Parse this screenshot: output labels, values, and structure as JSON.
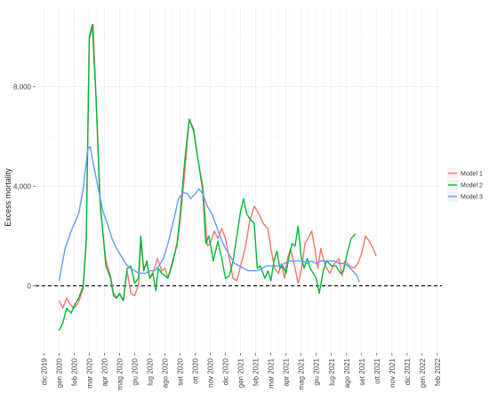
{
  "chart_data": {
    "type": "line",
    "title": "",
    "xlabel": "",
    "ylabel": "Excess mortality",
    "x_tick_labels": [
      "dic 2019",
      "gen 2020",
      "feb 2020",
      "mar 2020",
      "apr 2020",
      "mag 2020",
      "giu 2020",
      "lug 2020",
      "ago 2020",
      "set 2020",
      "ott 2020",
      "nov 2020",
      "dic 2020",
      "gen 2021",
      "feb 2021",
      "mar 2021",
      "apr 2021",
      "mag 2021",
      "giu 2021",
      "lug 2021",
      "ago 2021",
      "set 2021",
      "ott 2021",
      "nov 2021",
      "dic 2021",
      "gen 2022",
      "feb 2022"
    ],
    "y_ticks": [
      {
        "value": 0,
        "label": "0"
      },
      {
        "value": 4000,
        "label": "4,000"
      },
      {
        "value": 8000,
        "label": "8,000"
      }
    ],
    "xlim_month_index": [
      -0.55,
      26.3
    ],
    "ylim": [
      -2700,
      11200
    ],
    "reference_line": {
      "y": 0,
      "style": "dashed",
      "color": "#000000"
    },
    "grid": true,
    "legend_position": "right",
    "series": [
      {
        "name": "Model 1",
        "color": "#F8766D",
        "points": [
          [
            1.0,
            -600
          ],
          [
            1.25,
            -900
          ],
          [
            1.5,
            -500
          ],
          [
            1.8,
            -800
          ],
          [
            2.0,
            -900
          ],
          [
            2.3,
            -650
          ],
          [
            2.6,
            -100
          ],
          [
            2.8,
            1800
          ],
          [
            3.0,
            9900
          ],
          [
            3.25,
            10500
          ],
          [
            3.5,
            6800
          ],
          [
            3.75,
            3000
          ],
          [
            4.1,
            1000
          ],
          [
            4.4,
            400
          ],
          [
            4.6,
            -300
          ],
          [
            4.8,
            -450
          ],
          [
            5.0,
            -350
          ],
          [
            5.25,
            -600
          ],
          [
            5.5,
            600
          ],
          [
            5.75,
            -300
          ],
          [
            6.0,
            -400
          ],
          [
            6.25,
            50
          ],
          [
            6.4,
            1700
          ],
          [
            6.6,
            700
          ],
          [
            6.8,
            900
          ],
          [
            7.0,
            300
          ],
          [
            7.25,
            600
          ],
          [
            7.5,
            1100
          ],
          [
            7.8,
            600
          ],
          [
            8.0,
            700
          ],
          [
            8.2,
            300
          ],
          [
            8.5,
            1000
          ],
          [
            8.8,
            1600
          ],
          [
            9.0,
            2600
          ],
          [
            9.3,
            4500
          ],
          [
            9.6,
            6700
          ],
          [
            9.9,
            6300
          ],
          [
            10.2,
            5000
          ],
          [
            10.5,
            4000
          ],
          [
            10.8,
            1600
          ],
          [
            11.0,
            1700
          ],
          [
            11.25,
            2200
          ],
          [
            11.5,
            1900
          ],
          [
            11.75,
            2300
          ],
          [
            12.0,
            1900
          ],
          [
            12.25,
            1100
          ],
          [
            12.5,
            300
          ],
          [
            12.75,
            200
          ],
          [
            13.0,
            800
          ],
          [
            13.3,
            1500
          ],
          [
            13.6,
            2600
          ],
          [
            13.9,
            3200
          ],
          [
            14.2,
            2900
          ],
          [
            14.5,
            2500
          ],
          [
            14.8,
            2300
          ],
          [
            15.0,
            1500
          ],
          [
            15.25,
            700
          ],
          [
            15.5,
            500
          ],
          [
            15.7,
            900
          ],
          [
            15.9,
            300
          ],
          [
            16.1,
            1100
          ],
          [
            16.3,
            1500
          ],
          [
            16.6,
            700
          ],
          [
            16.8,
            100
          ],
          [
            17.0,
            600
          ],
          [
            17.25,
            1700
          ],
          [
            17.45,
            1900
          ],
          [
            17.7,
            2200
          ],
          [
            17.9,
            1500
          ],
          [
            18.1,
            700
          ],
          [
            18.3,
            1500
          ],
          [
            18.6,
            800
          ],
          [
            18.9,
            500
          ],
          [
            19.2,
            900
          ],
          [
            19.5,
            1100
          ],
          [
            19.7,
            400
          ],
          [
            19.9,
            1000
          ],
          [
            20.2,
            800
          ],
          [
            20.5,
            700
          ],
          [
            20.75,
            900
          ],
          [
            21.0,
            1300
          ],
          [
            21.25,
            2000
          ],
          [
            21.5,
            1800
          ],
          [
            21.75,
            1500
          ],
          [
            21.95,
            1200
          ]
        ]
      },
      {
        "name": "Model 2",
        "color": "#00BA38",
        "points": [
          [
            1.0,
            -1800
          ],
          [
            1.25,
            -1500
          ],
          [
            1.5,
            -900
          ],
          [
            1.8,
            -1100
          ],
          [
            2.0,
            -800
          ],
          [
            2.3,
            -500
          ],
          [
            2.6,
            0
          ],
          [
            2.8,
            1800
          ],
          [
            3.0,
            10000
          ],
          [
            3.2,
            10500
          ],
          [
            3.45,
            7500
          ],
          [
            3.7,
            3500
          ],
          [
            4.1,
            800
          ],
          [
            4.4,
            300
          ],
          [
            4.6,
            -400
          ],
          [
            4.8,
            -500
          ],
          [
            5.0,
            -300
          ],
          [
            5.25,
            -600
          ],
          [
            5.5,
            700
          ],
          [
            5.75,
            800
          ],
          [
            6.0,
            100
          ],
          [
            6.25,
            300
          ],
          [
            6.4,
            2000
          ],
          [
            6.6,
            600
          ],
          [
            6.8,
            1000
          ],
          [
            7.0,
            300
          ],
          [
            7.2,
            500
          ],
          [
            7.4,
            -200
          ],
          [
            7.55,
            700
          ],
          [
            7.8,
            500
          ],
          [
            8.0,
            400
          ],
          [
            8.2,
            300
          ],
          [
            8.5,
            900
          ],
          [
            8.8,
            1700
          ],
          [
            9.0,
            2800
          ],
          [
            9.3,
            5000
          ],
          [
            9.6,
            6700
          ],
          [
            9.9,
            6200
          ],
          [
            10.2,
            5000
          ],
          [
            10.5,
            3800
          ],
          [
            10.7,
            1700
          ],
          [
            10.9,
            2000
          ],
          [
            11.2,
            1000
          ],
          [
            11.5,
            1800
          ],
          [
            11.75,
            1100
          ],
          [
            12.0,
            300
          ],
          [
            12.25,
            400
          ],
          [
            12.5,
            1000
          ],
          [
            12.75,
            2000
          ],
          [
            13.0,
            3000
          ],
          [
            13.2,
            3500
          ],
          [
            13.4,
            2900
          ],
          [
            13.6,
            2700
          ],
          [
            13.9,
            2500
          ],
          [
            14.1,
            700
          ],
          [
            14.3,
            800
          ],
          [
            14.6,
            300
          ],
          [
            14.8,
            600
          ],
          [
            15.0,
            200
          ],
          [
            15.2,
            1000
          ],
          [
            15.4,
            1400
          ],
          [
            15.6,
            700
          ],
          [
            15.8,
            800
          ],
          [
            16.0,
            500
          ],
          [
            16.2,
            1200
          ],
          [
            16.4,
            1700
          ],
          [
            16.6,
            1600
          ],
          [
            16.8,
            2400
          ],
          [
            17.0,
            1200
          ],
          [
            17.2,
            700
          ],
          [
            17.4,
            1100
          ],
          [
            17.6,
            700
          ],
          [
            17.8,
            500
          ],
          [
            18.0,
            300
          ],
          [
            18.2,
            -300
          ],
          [
            18.5,
            700
          ],
          [
            18.7,
            1000
          ],
          [
            19.0,
            800
          ],
          [
            19.3,
            800
          ],
          [
            19.6,
            500
          ],
          [
            19.8,
            600
          ],
          [
            20.0,
            1200
          ],
          [
            20.3,
            1900
          ],
          [
            20.6,
            2100
          ]
        ]
      },
      {
        "name": "Model 3",
        "color": "#619CFF",
        "points": [
          [
            1.0,
            200
          ],
          [
            1.4,
            1500
          ],
          [
            1.8,
            2200
          ],
          [
            2.3,
            2900
          ],
          [
            2.6,
            3900
          ],
          [
            2.9,
            5500
          ],
          [
            3.05,
            5600
          ],
          [
            3.3,
            4800
          ],
          [
            3.6,
            3900
          ],
          [
            3.9,
            3000
          ],
          [
            4.2,
            2500
          ],
          [
            4.5,
            1900
          ],
          [
            4.8,
            1500
          ],
          [
            5.1,
            1200
          ],
          [
            5.4,
            900
          ],
          [
            5.7,
            700
          ],
          [
            6.0,
            600
          ],
          [
            6.3,
            500
          ],
          [
            6.7,
            500
          ],
          [
            7.0,
            600
          ],
          [
            7.3,
            600
          ],
          [
            7.6,
            800
          ],
          [
            7.9,
            1100
          ],
          [
            8.2,
            1700
          ],
          [
            8.6,
            2700
          ],
          [
            8.9,
            3500
          ],
          [
            9.2,
            3750
          ],
          [
            9.5,
            3700
          ],
          [
            9.7,
            3500
          ],
          [
            10.0,
            3700
          ],
          [
            10.25,
            3900
          ],
          [
            10.5,
            3700
          ],
          [
            10.8,
            3200
          ],
          [
            11.1,
            2900
          ],
          [
            11.4,
            2400
          ],
          [
            11.7,
            1900
          ],
          [
            12.0,
            1500
          ],
          [
            12.3,
            1200
          ],
          [
            12.6,
            900
          ],
          [
            12.9,
            800
          ],
          [
            13.2,
            700
          ],
          [
            13.5,
            600
          ],
          [
            13.8,
            600
          ],
          [
            14.1,
            600
          ],
          [
            14.4,
            700
          ],
          [
            14.7,
            800
          ],
          [
            15.0,
            800
          ],
          [
            15.3,
            800
          ],
          [
            15.6,
            800
          ],
          [
            15.9,
            900
          ],
          [
            16.2,
            1000
          ],
          [
            16.5,
            1000
          ],
          [
            16.8,
            1000
          ],
          [
            17.1,
            1000
          ],
          [
            17.4,
            900
          ],
          [
            17.7,
            1000
          ],
          [
            18.0,
            900
          ],
          [
            18.3,
            1000
          ],
          [
            18.6,
            1000
          ],
          [
            18.9,
            1000
          ],
          [
            19.2,
            1000
          ],
          [
            19.5,
            900
          ],
          [
            19.8,
            900
          ],
          [
            20.1,
            800
          ],
          [
            20.4,
            600
          ],
          [
            20.7,
            400
          ],
          [
            20.85,
            150
          ]
        ]
      }
    ]
  }
}
